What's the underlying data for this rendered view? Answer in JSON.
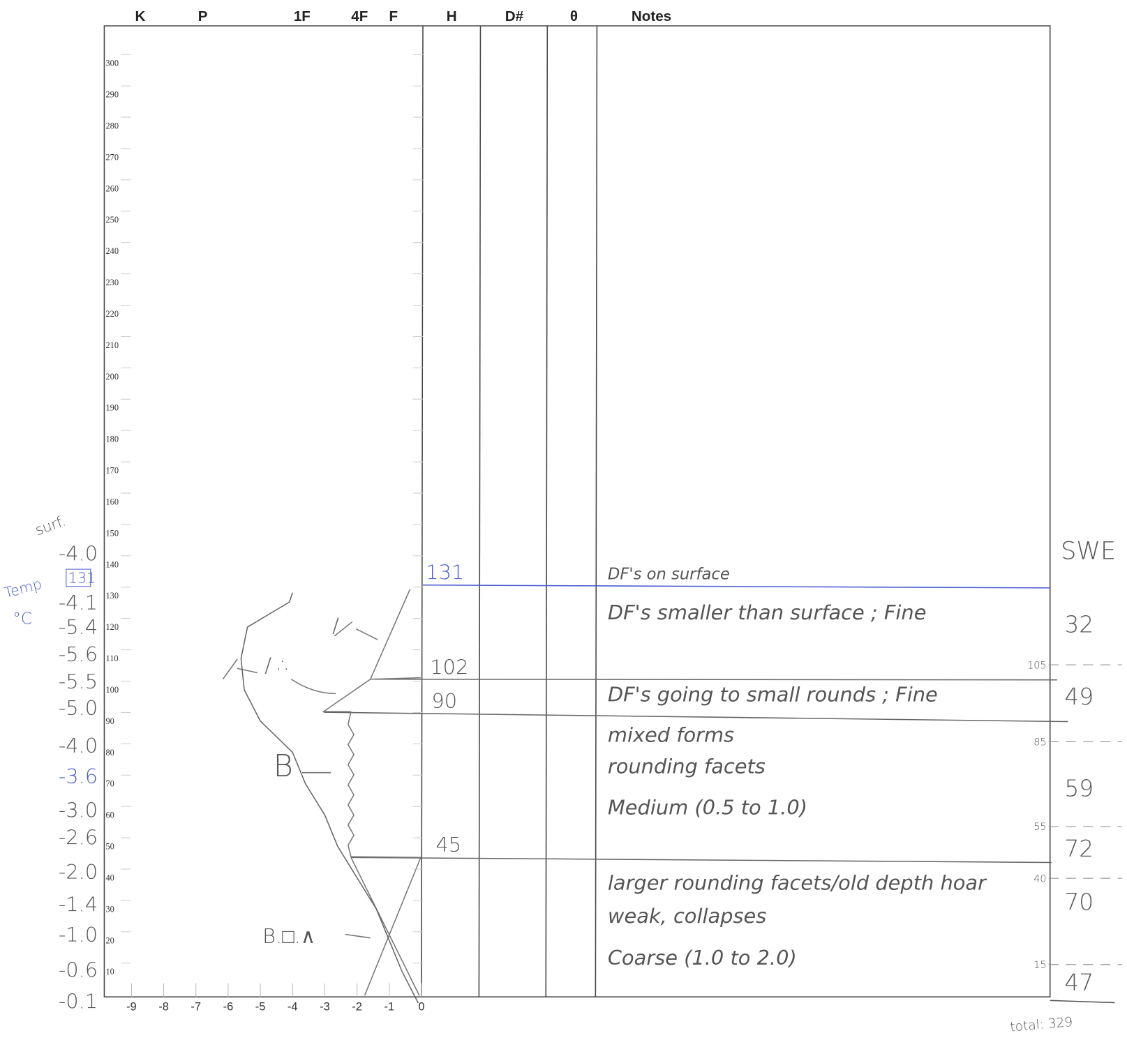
{
  "header": {
    "columns": [
      "K",
      "P",
      "1F",
      "4F",
      "F",
      "H",
      "D#",
      "θ",
      "Notes"
    ]
  },
  "height_axis": {
    "ticks": [
      300,
      290,
      280,
      270,
      260,
      250,
      240,
      230,
      220,
      210,
      200,
      190,
      180,
      170,
      160,
      150,
      140,
      130,
      120,
      110,
      100,
      90,
      80,
      70,
      60,
      50,
      40,
      30,
      20,
      10
    ]
  },
  "hardness_axis": {
    "ticks": [
      -9,
      -8,
      -7,
      -6,
      -5,
      -4,
      -3,
      -2,
      -1,
      0
    ]
  },
  "temperature": {
    "title": "Temp",
    "unit": "°C",
    "surface_label": "surf.",
    "snow_height": "131",
    "readings": [
      "-4.0",
      "-4.1",
      "-5.4",
      "-5.6",
      "-5.5",
      "-5.0",
      "-4.0",
      "-3.6",
      "-3.0",
      "-2.6",
      "-2.0",
      "-1.4",
      "-1.0",
      "-0.6",
      "-0.1"
    ]
  },
  "layers": [
    {
      "top": "131",
      "grain": "/",
      "notes": [
        "DF's on surface",
        "DF's smaller than surface ; Fine"
      ]
    },
    {
      "top": "102",
      "grain": "/ ∴",
      "notes": [
        "DF's going to small rounds ; Fine"
      ]
    },
    {
      "top": "90",
      "grain": "B",
      "notes": [
        "mixed forms",
        "rounding facets",
        "Medium (0.5 to 1.0)"
      ]
    },
    {
      "top": "45",
      "grain": "B.□.∧",
      "notes": [
        "larger rounding facets/old depth hoar",
        "weak, collapses",
        "Coarse (1.0 to 2.0)"
      ]
    }
  ],
  "swe": {
    "label": "SWE",
    "samples": [
      "32",
      "49",
      "59",
      "72",
      "70",
      "47"
    ],
    "depths": [
      "105",
      "85",
      "55",
      "40",
      "15"
    ],
    "total": "total: 329"
  }
}
